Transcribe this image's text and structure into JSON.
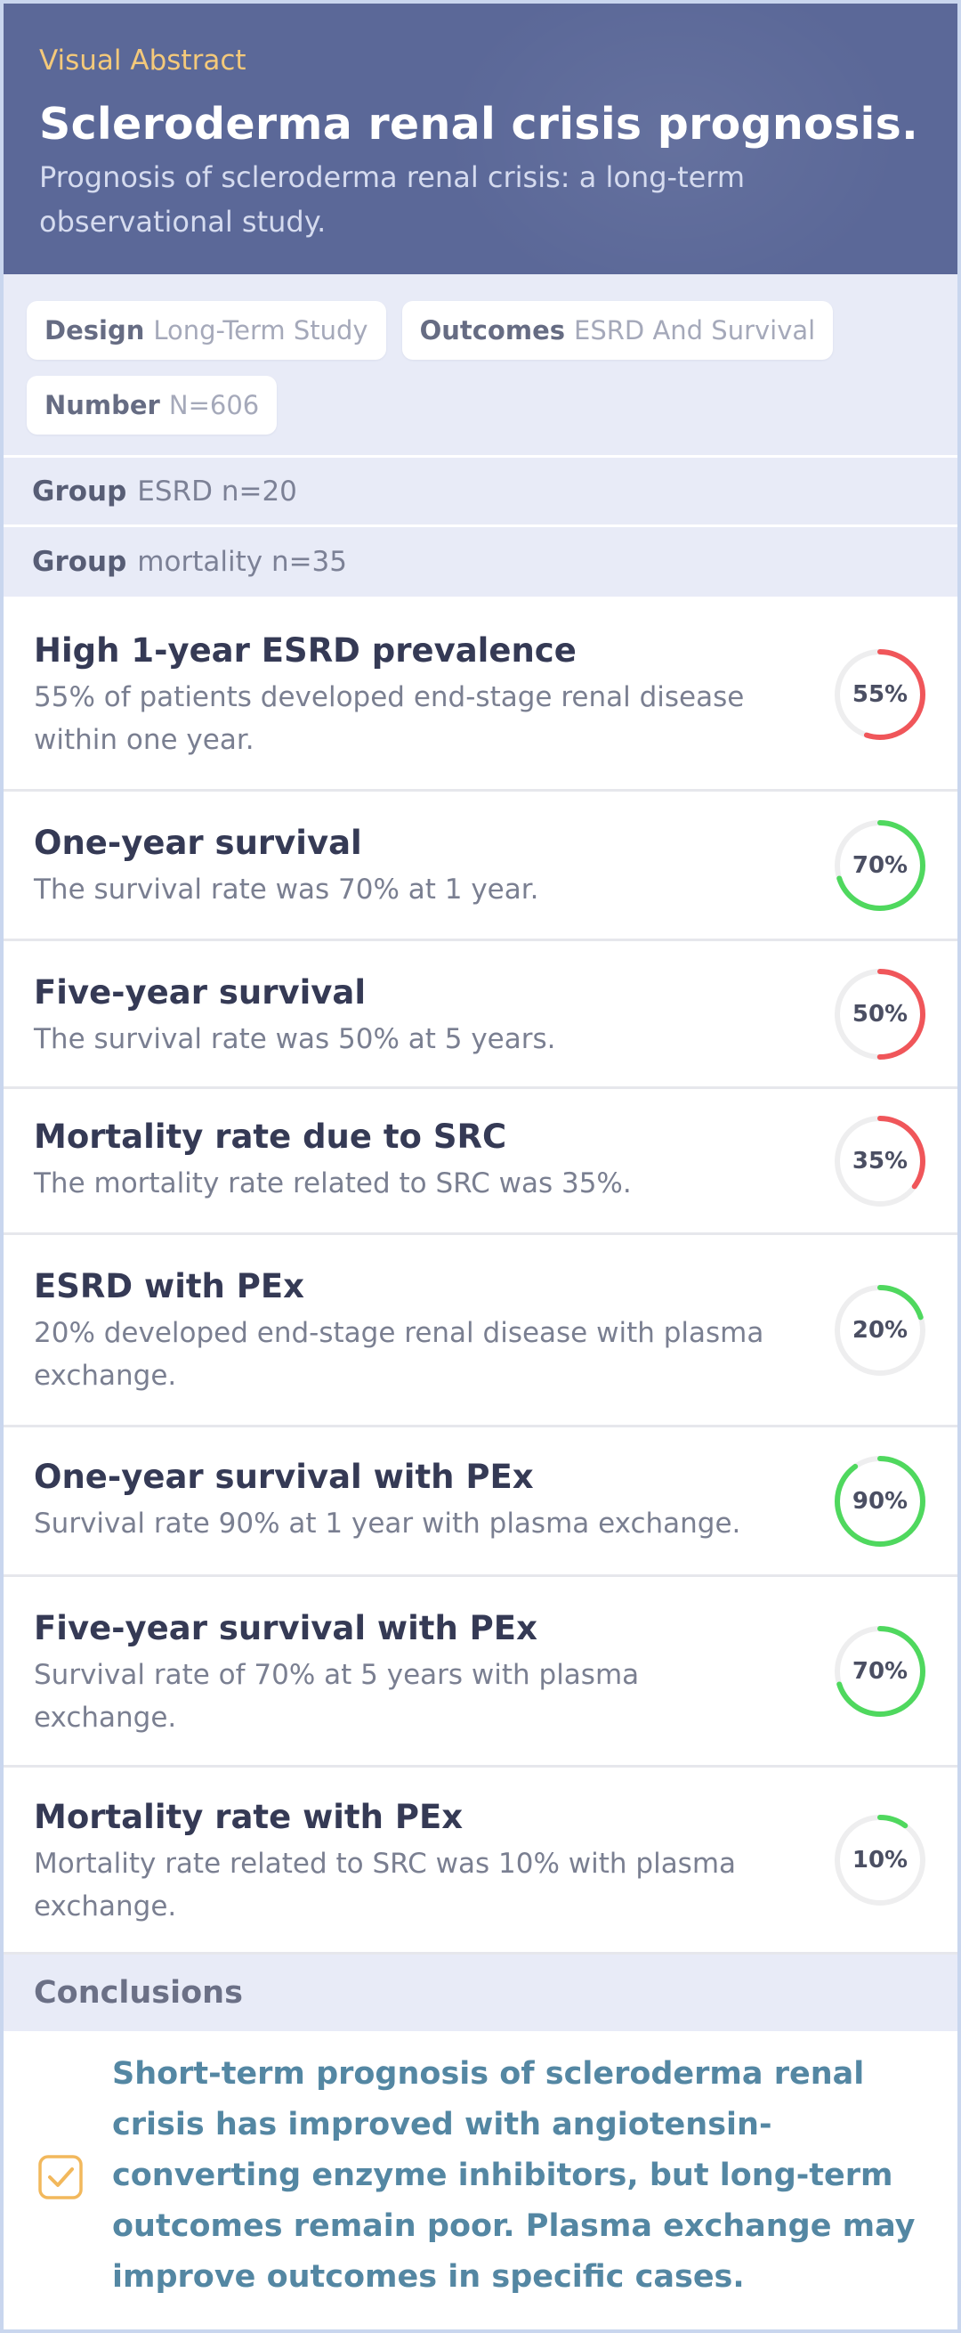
{
  "header": {
    "eyebrow": "Visual Abstract",
    "title": "Scleroderma renal crisis prognosis.",
    "subtitle": "Prognosis of scleroderma renal crisis: a long-term observational study."
  },
  "meta": [
    {
      "key": "Design",
      "value": "Long-Term Study"
    },
    {
      "key": "Outcomes",
      "value": "ESRD And Survival"
    },
    {
      "key": "Number",
      "value": "N=606"
    }
  ],
  "groups": [
    {
      "key": "Group",
      "value": "ESRD n=20"
    },
    {
      "key": "Group",
      "value": "mortality n=35"
    }
  ],
  "findings": [
    {
      "title": "High 1-year ESRD prevalence",
      "desc": "55% of patients developed end-stage renal disease within one year.",
      "percent": 55,
      "label": "55%",
      "color": "#f0565a"
    },
    {
      "title": "One-year survival",
      "desc": "The survival rate was 70% at 1 year.",
      "percent": 70,
      "label": "70%",
      "color": "#4fd85e"
    },
    {
      "title": "Five-year survival",
      "desc": "The survival rate was 50% at 5 years.",
      "percent": 50,
      "label": "50%",
      "color": "#f0565a"
    },
    {
      "title": "Mortality rate due to SRC",
      "desc": "The mortality rate related to SRC was 35%.",
      "percent": 35,
      "label": "35%",
      "color": "#f0565a"
    },
    {
      "title": "ESRD with PEx",
      "desc": "20% developed end-stage renal disease with plasma exchange.",
      "percent": 20,
      "label": "20%",
      "color": "#4fd85e"
    },
    {
      "title": "One-year survival with PEx",
      "desc": "Survival rate 90% at 1 year with plasma exchange.",
      "percent": 90,
      "label": "90%",
      "color": "#4fd85e"
    },
    {
      "title": "Five-year survival with PEx",
      "desc": "Survival rate of 70% at 5 years with plasma exchange.",
      "percent": 70,
      "label": "70%",
      "color": "#4fd85e"
    },
    {
      "title": "Mortality rate with PEx",
      "desc": "Mortality rate related to SRC was 10% with plasma exchange.",
      "percent": 10,
      "label": "10%",
      "color": "#4fd85e"
    }
  ],
  "conclusions": {
    "heading": "Conclusions",
    "text": "Short-term prognosis of scleroderma renal crisis has improved with angiotensin-converting enzyme inhibitors, but long-term outcomes remain poor. Plasma exchange may improve outcomes in specific cases.",
    "check_color": "#f2b85c",
    "check_icon": "checkbox-checked-icon"
  }
}
